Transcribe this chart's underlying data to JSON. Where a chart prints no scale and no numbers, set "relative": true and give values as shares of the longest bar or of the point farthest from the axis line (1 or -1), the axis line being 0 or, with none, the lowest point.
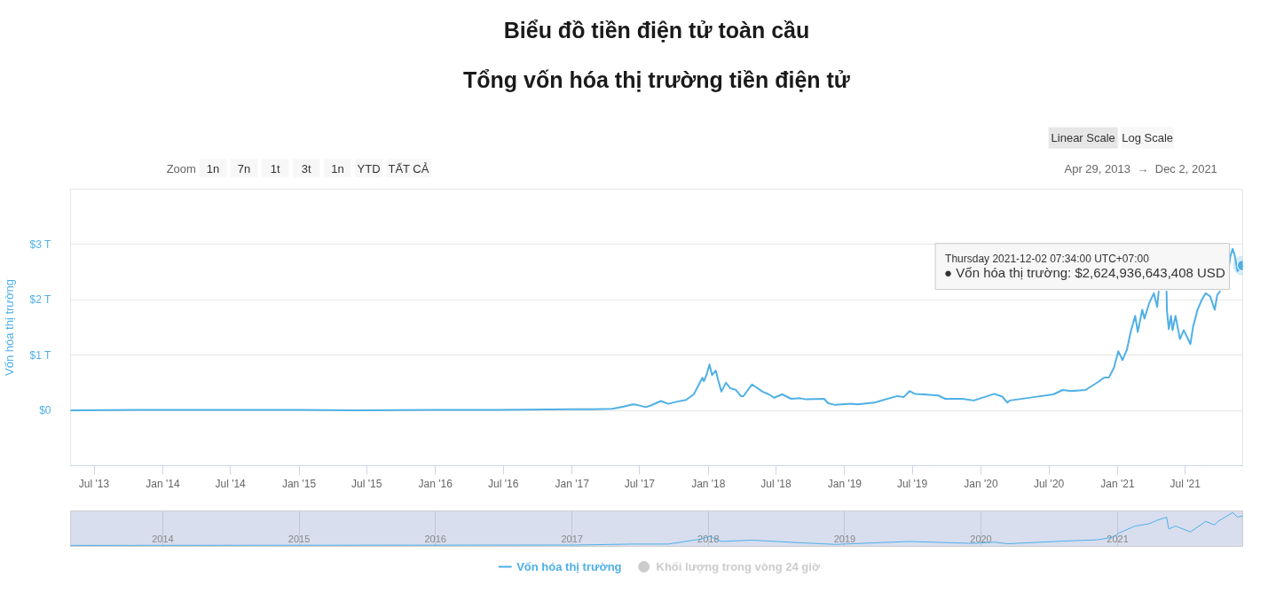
{
  "chart_data": [
    {
      "type": "line",
      "title": "Biểu đồ tiền điện tử toàn cầu",
      "subtitle": "Tổng vốn hóa thị trường tiền điện tử",
      "ylabel": "Vốn hóa thị trường",
      "x": [
        "2013-04-29",
        "2013-11-01",
        "2013-12-04",
        "2014-02-01",
        "2014-06-01",
        "2015-01-01",
        "2015-06-01",
        "2016-01-01",
        "2016-06-17",
        "2017-01-01",
        "2017-03-01",
        "2017-04-19",
        "2017-05-19",
        "2017-06-13",
        "2017-06-24",
        "2017-07-17",
        "2017-07-31",
        "2017-08-27",
        "2017-09-16",
        "2017-10-10",
        "2017-11-02",
        "2017-11-23",
        "2017-12-16",
        "2017-12-20",
        "2017-12-27",
        "2018-01-04",
        "2018-01-11",
        "2018-01-21",
        "2018-01-28",
        "2018-02-05",
        "2018-02-17",
        "2018-03-01",
        "2018-03-16",
        "2018-03-29",
        "2018-04-05",
        "2018-04-28",
        "2018-05-26",
        "2018-06-12",
        "2018-06-26",
        "2018-07-18",
        "2018-08-11",
        "2018-09-04",
        "2018-09-21",
        "2018-11-07",
        "2018-11-18",
        "2018-12-07",
        "2019-01-18",
        "2019-02-04",
        "2019-03-22",
        "2019-04-05",
        "2019-05-11",
        "2019-05-22",
        "2019-06-08",
        "2019-06-24",
        "2019-07-08",
        "2019-08-01",
        "2019-09-09",
        "2019-09-27",
        "2019-11-12",
        "2019-12-13",
        "2020-02-06",
        "2020-02-27",
        "2020-03-12",
        "2020-03-18",
        "2020-05-21",
        "2020-07-13",
        "2020-08-07",
        "2020-08-29",
        "2020-10-07",
        "2020-11-09",
        "2020-11-25",
        "2020-12-09",
        "2020-12-22",
        "2021-01-03",
        "2021-01-14",
        "2021-01-26",
        "2021-02-05",
        "2021-02-17",
        "2021-02-24",
        "2021-03-08",
        "2021-03-14",
        "2021-03-26",
        "2021-04-08",
        "2021-04-17",
        "2021-04-21",
        "2021-05-01",
        "2021-05-12",
        "2021-05-13",
        "2021-05-18",
        "2021-05-24",
        "2021-05-28",
        "2021-06-05",
        "2021-06-17",
        "2021-06-27",
        "2021-07-03",
        "2021-07-15",
        "2021-07-22",
        "2021-08-03",
        "2021-08-15",
        "2021-08-25",
        "2021-09-06",
        "2021-09-18",
        "2021-09-25",
        "2021-10-02",
        "2021-10-14",
        "2021-10-26",
        "2021-10-30",
        "2021-11-05",
        "2021-11-10",
        "2021-11-18",
        "2021-12-02"
      ],
      "series": [
        {
          "name": "Vốn hóa thị trường",
          "color": "#4fb0e6",
          "values": [
            0,
            0.01,
            0.01,
            0.01,
            0.01,
            0.01,
            0,
            0.01,
            0.01,
            0.02,
            0.02,
            0.03,
            0.07,
            0.11,
            0.1,
            0.06,
            0.09,
            0.17,
            0.12,
            0.16,
            0.19,
            0.29,
            0.59,
            0.53,
            0.64,
            0.83,
            0.64,
            0.72,
            0.53,
            0.34,
            0.5,
            0.4,
            0.37,
            0.26,
            0.26,
            0.47,
            0.34,
            0.29,
            0.23,
            0.29,
            0.21,
            0.22,
            0.2,
            0.21,
            0.13,
            0.1,
            0.12,
            0.11,
            0.14,
            0.17,
            0.24,
            0.26,
            0.24,
            0.35,
            0.3,
            0.29,
            0.27,
            0.21,
            0.21,
            0.18,
            0.3,
            0.25,
            0.14,
            0.18,
            0.24,
            0.29,
            0.37,
            0.35,
            0.37,
            0.51,
            0.59,
            0.6,
            0.77,
            1.07,
            0.91,
            1.1,
            1.42,
            1.71,
            1.42,
            1.82,
            1.66,
            1.93,
            2.12,
            1.87,
            2.15,
            null,
            2.15,
            1.82,
            1.47,
            1.71,
            1.45,
            1.71,
            1.29,
            1.45,
            1.37,
            1.2,
            1.51,
            1.82,
            2.01,
            2.12,
            2.06,
            1.82,
            2.09,
            2.15,
            null,
            2.6,
            2.79,
            2.92,
            2.82,
            2.52,
            2.62
          ]
        },
        {
          "name": "Khối lượng trong vòng 24 giờ",
          "type": "scatter",
          "color": "#cccccc",
          "values": [
            null,
            null,
            null,
            null,
            null,
            null,
            null,
            null,
            null,
            null,
            null,
            null,
            null,
            null,
            null,
            null,
            null,
            null,
            null,
            null,
            null,
            null,
            null,
            null,
            null,
            null,
            null,
            null,
            null,
            null,
            null,
            null,
            null,
            null,
            null,
            null,
            null,
            null,
            null,
            null,
            null,
            null,
            null,
            null,
            null,
            null,
            null,
            null,
            null,
            null,
            null,
            null,
            null,
            null,
            null,
            null,
            null,
            null,
            null,
            null,
            null,
            null,
            null,
            null,
            null,
            null,
            null,
            null,
            null,
            null,
            null,
            null,
            null,
            null,
            null,
            null,
            null,
            null,
            null,
            null,
            null,
            null,
            null,
            null,
            null,
            null,
            null,
            null,
            null,
            null,
            null,
            null,
            null,
            null,
            null,
            null,
            null,
            null,
            null,
            null,
            null,
            null,
            null,
            null,
            null,
            null,
            null,
            null,
            null,
            null,
            null
          ]
        }
      ],
      "xlim": [
        "2013-04-29",
        "2021-12-02"
      ],
      "xticks": [
        {
          "value": "2013-07-01",
          "label": "Jul '13"
        },
        {
          "value": "2014-01-01",
          "label": "Jan '14"
        },
        {
          "value": "2014-07-01",
          "label": "Jul '14"
        },
        {
          "value": "2015-01-01",
          "label": "Jan '15"
        },
        {
          "value": "2015-07-01",
          "label": "Jul '15"
        },
        {
          "value": "2016-01-01",
          "label": "Jan '16"
        },
        {
          "value": "2016-07-01",
          "label": "Jul '16"
        },
        {
          "value": "2017-01-01",
          "label": "Jan '17"
        },
        {
          "value": "2017-07-01",
          "label": "Jul '17"
        },
        {
          "value": "2018-01-01",
          "label": "Jan '18"
        },
        {
          "value": "2018-07-01",
          "label": "Jul '18"
        },
        {
          "value": "2019-01-01",
          "label": "Jan '19"
        },
        {
          "value": "2019-07-01",
          "label": "Jul '19"
        },
        {
          "value": "2020-01-01",
          "label": "Jan '20"
        },
        {
          "value": "2020-07-01",
          "label": "Jul '20"
        },
        {
          "value": "2021-01-01",
          "label": "Jan '21"
        },
        {
          "value": "2021-07-01",
          "label": "Jul '21"
        }
      ],
      "ylim": [
        -1,
        4
      ],
      "yticks": [
        {
          "value": -1,
          "label": null
        },
        {
          "value": 0,
          "label": "$0"
        },
        {
          "value": 1,
          "label": "$1 T"
        },
        {
          "value": 2,
          "label": "$2 T"
        },
        {
          "value": 3,
          "label": "$3 T"
        },
        {
          "value": 4,
          "label": null
        }
      ],
      "grid": "y",
      "legend": "bottom",
      "annotations": [
        "Thursday 2021-12-02 07:34:00 UTC+07:00",
        "● Vốn hóa thị trường: $2,624,936,643,408 USD",
        "Zoom",
        "1n",
        "7n",
        "1t",
        "3t",
        "1n",
        "YTD",
        "TẤT CẢ",
        "Linear Scale",
        "Log Scale",
        "Apr 29, 2013",
        "→",
        "Dec 2, 2021"
      ]
    },
    {
      "type": "line",
      "relative": true,
      "x": [
        "2013-04-29",
        "2017-01-01",
        "2017-06-13",
        "2017-09-16",
        "2017-12-16",
        "2018-01-04",
        "2018-02-05",
        "2018-04-28",
        "2018-09-04",
        "2018-12-07",
        "2019-06-24",
        "2019-12-13",
        "2020-02-06",
        "2020-03-12",
        "2020-08-07",
        "2020-11-09",
        "2020-12-22",
        "2021-01-03",
        "2021-02-17",
        "2021-03-26",
        "2021-04-13",
        "2021-05-12",
        "2021-05-18",
        "2021-06-05",
        "2021-07-15",
        "2021-08-25",
        "2021-09-18",
        "2021-09-25",
        "2021-11-05",
        "2021-11-18",
        "2021-12-02"
      ],
      "series": [
        {
          "color": "#4fb0e6",
          "values": [
            0,
            0.01,
            0.04,
            0.04,
            0.2,
            0.28,
            0.12,
            0.16,
            0.08,
            0.03,
            0.12,
            0.06,
            0.1,
            0.05,
            0.13,
            0.17,
            0.26,
            0.37,
            0.59,
            0.66,
            0.75,
            0.86,
            0.5,
            0.59,
            0.41,
            0.73,
            0.62,
            0.72,
            1,
            0.86,
            0.9
          ]
        }
      ],
      "xlim": [
        "2013-04-29",
        "2021-12-02"
      ],
      "xticks": [
        {
          "value": "2014-01-01",
          "label": "2014"
        },
        {
          "value": "2015-01-01",
          "label": "2015"
        },
        {
          "value": "2016-01-01",
          "label": "2016"
        },
        {
          "value": "2017-01-01",
          "label": "2017"
        },
        {
          "value": "2018-01-01",
          "label": "2018"
        },
        {
          "value": "2019-01-01",
          "label": "2019"
        },
        {
          "value": "2020-01-01",
          "label": "2020"
        },
        {
          "value": "2021-01-01",
          "label": "2021"
        }
      ],
      "tick_labels": "x",
      "grid": "x"
    }
  ]
}
